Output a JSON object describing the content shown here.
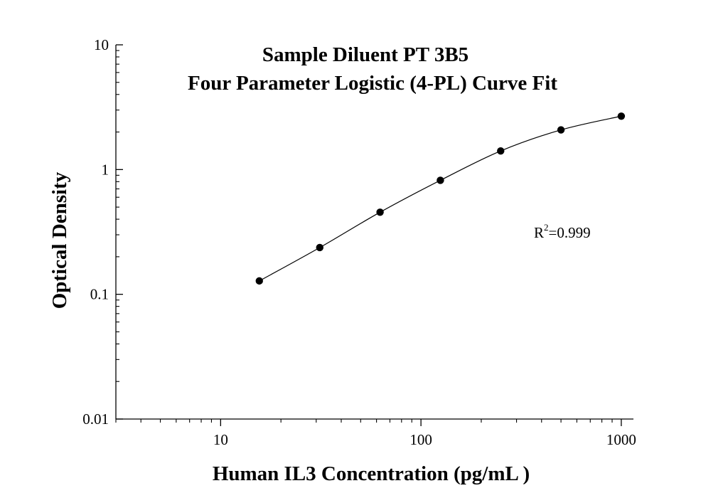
{
  "chart_data": {
    "type": "scatter",
    "title": "Sample Diluent PT 3B5",
    "subtitle": "Four Parameter Logistic (4-PL) Curve Fit",
    "xlabel": "Human IL3 Concentration (pg/mL )",
    "ylabel": "Optical Density",
    "xscale": "log",
    "yscale": "log",
    "xlim": [
      3,
      1150
    ],
    "ylim": [
      0.01,
      10
    ],
    "xticks": [
      {
        "value": 10,
        "label": "10"
      },
      {
        "value": 100,
        "label": "100"
      },
      {
        "value": 1000,
        "label": "1000"
      }
    ],
    "yticks": [
      {
        "value": 0.01,
        "label": "0.01"
      },
      {
        "value": 0.1,
        "label": "0.1"
      },
      {
        "value": 1,
        "label": "1"
      },
      {
        "value": 10,
        "label": "10"
      }
    ],
    "grid": false,
    "points": [
      {
        "x": 15.6,
        "y": 0.128
      },
      {
        "x": 31.25,
        "y": 0.237
      },
      {
        "x": 62.5,
        "y": 0.455
      },
      {
        "x": 125,
        "y": 0.82
      },
      {
        "x": 250,
        "y": 1.41
      },
      {
        "x": 500,
        "y": 2.08
      },
      {
        "x": 1000,
        "y": 2.68
      }
    ],
    "fit": {
      "model": "4-PL",
      "xrange": [
        15.6,
        1000
      ]
    },
    "annotation": {
      "base": "R",
      "superscript": "2",
      "text": "=0.999"
    },
    "colors": {
      "points": "#000000",
      "curve": "#000000",
      "axes": "#000000"
    }
  }
}
